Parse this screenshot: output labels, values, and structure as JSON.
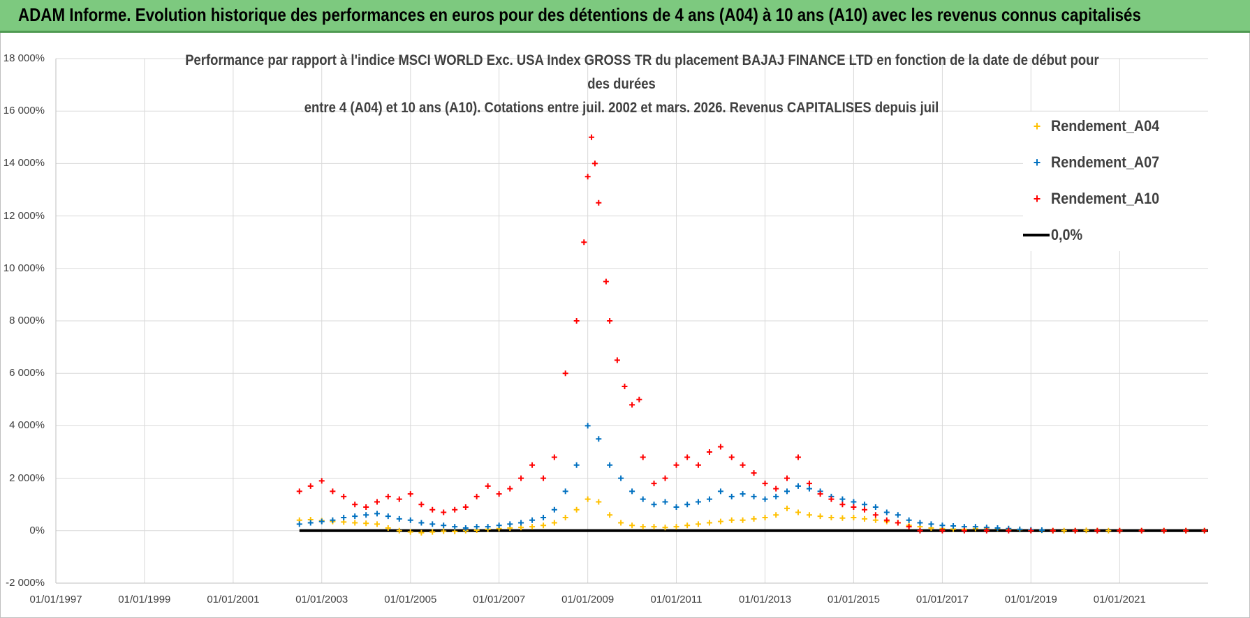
{
  "banner": {
    "title": "ADAM Informe. Evolution historique des performances en euros pour des détentions de 4 ans (A04) à 10 ans (A10) avec les revenus connus capitalisés"
  },
  "colors": {
    "banner_bg": "#7dc97f",
    "a04": "#ffc000",
    "a07": "#0070c0",
    "a10": "#ff0000",
    "zero": "#000000",
    "grid": "#d9d9d9"
  },
  "chart_data": {
    "type": "scatter",
    "title_lines": [
      "Performance par rapport à l'indice MSCI WORLD Exc. USA Index GROSS TR  du placement BAJAJ FINANCE LTD en fonction de la date de début pour",
      "des durées",
      "entre 4 (A04) et 10 ans (A10). Cotations entre juil. 2002 et mars. 2026. Revenus CAPITALISES depuis juil"
    ],
    "xlabel": "",
    "ylabel": "",
    "x_range": [
      "1997-01-01",
      "2022-12-31"
    ],
    "x_ticks": [
      "01/01/1997",
      "01/01/1999",
      "01/01/2001",
      "01/01/2003",
      "01/01/2005",
      "01/01/2007",
      "01/01/2009",
      "01/01/2011",
      "01/01/2013",
      "01/01/2015",
      "01/01/2017",
      "01/01/2019",
      "01/01/2021"
    ],
    "y_range": [
      -2000,
      18000
    ],
    "y_ticks": [
      -2000,
      0,
      2000,
      4000,
      6000,
      8000,
      10000,
      12000,
      14000,
      16000,
      18000
    ],
    "y_tick_labels": [
      "-2 000%",
      "0%",
      "2 000%",
      "4 000%",
      "6 000%",
      "8 000%",
      "10 000%",
      "12 000%",
      "14 000%",
      "16 000%",
      "18 000%"
    ],
    "grid": true,
    "legend_position": "top-right",
    "series": [
      {
        "name": "Rendement_A04",
        "marker": "+",
        "points": [
          [
            "2002-07-01",
            400
          ],
          [
            "2002-10-01",
            420
          ],
          [
            "2003-01-01",
            380
          ],
          [
            "2003-04-01",
            350
          ],
          [
            "2003-07-01",
            330
          ],
          [
            "2003-10-01",
            300
          ],
          [
            "2004-01-01",
            280
          ],
          [
            "2004-04-01",
            250
          ],
          [
            "2004-07-01",
            100
          ],
          [
            "2004-10-01",
            0
          ],
          [
            "2005-01-01",
            -50
          ],
          [
            "2005-04-01",
            -80
          ],
          [
            "2005-07-01",
            -50
          ],
          [
            "2005-10-01",
            -20
          ],
          [
            "2006-01-01",
            -30
          ],
          [
            "2006-04-01",
            0
          ],
          [
            "2006-07-01",
            20
          ],
          [
            "2006-10-01",
            50
          ],
          [
            "2007-01-01",
            80
          ],
          [
            "2007-04-01",
            100
          ],
          [
            "2007-07-01",
            120
          ],
          [
            "2007-10-01",
            150
          ],
          [
            "2008-01-01",
            200
          ],
          [
            "2008-04-01",
            300
          ],
          [
            "2008-07-01",
            500
          ],
          [
            "2008-10-01",
            800
          ],
          [
            "2009-01-01",
            1200
          ],
          [
            "2009-04-01",
            1100
          ],
          [
            "2009-07-01",
            600
          ],
          [
            "2009-10-01",
            300
          ],
          [
            "2010-01-01",
            200
          ],
          [
            "2010-04-01",
            150
          ],
          [
            "2010-07-01",
            150
          ],
          [
            "2010-10-01",
            120
          ],
          [
            "2011-01-01",
            150
          ],
          [
            "2011-04-01",
            200
          ],
          [
            "2011-07-01",
            250
          ],
          [
            "2011-10-01",
            300
          ],
          [
            "2012-01-01",
            350
          ],
          [
            "2012-04-01",
            400
          ],
          [
            "2012-07-01",
            400
          ],
          [
            "2012-10-01",
            450
          ],
          [
            "2013-01-01",
            500
          ],
          [
            "2013-04-01",
            600
          ],
          [
            "2013-07-01",
            850
          ],
          [
            "2013-10-01",
            700
          ],
          [
            "2014-01-01",
            600
          ],
          [
            "2014-04-01",
            550
          ],
          [
            "2014-07-01",
            500
          ],
          [
            "2014-10-01",
            480
          ],
          [
            "2015-01-01",
            500
          ],
          [
            "2015-04-01",
            450
          ],
          [
            "2015-07-01",
            400
          ],
          [
            "2015-10-01",
            350
          ],
          [
            "2016-01-01",
            300
          ],
          [
            "2016-04-01",
            200
          ],
          [
            "2016-07-01",
            150
          ],
          [
            "2016-10-01",
            100
          ],
          [
            "2017-01-01",
            80
          ],
          [
            "2017-04-01",
            60
          ],
          [
            "2017-07-01",
            50
          ],
          [
            "2017-10-01",
            80
          ],
          [
            "2018-01-01",
            100
          ],
          [
            "2018-04-01",
            80
          ],
          [
            "2018-07-01",
            60
          ],
          [
            "2018-10-01",
            40
          ],
          [
            "2019-01-01",
            20
          ],
          [
            "2019-04-01",
            10
          ],
          [
            "2019-07-01",
            0
          ],
          [
            "2019-10-01",
            0
          ],
          [
            "2020-01-01",
            0
          ],
          [
            "2020-04-01",
            10
          ],
          [
            "2020-07-01",
            5
          ],
          [
            "2020-10-01",
            0
          ],
          [
            "2021-01-01",
            0
          ],
          [
            "2021-07-01",
            0
          ],
          [
            "2022-01-01",
            0
          ],
          [
            "2022-07-01",
            0
          ],
          [
            "2022-12-01",
            0
          ]
        ]
      },
      {
        "name": "Rendement_A07",
        "marker": "+",
        "points": [
          [
            "2002-07-01",
            250
          ],
          [
            "2002-10-01",
            300
          ],
          [
            "2003-01-01",
            350
          ],
          [
            "2003-04-01",
            400
          ],
          [
            "2003-07-01",
            500
          ],
          [
            "2003-10-01",
            550
          ],
          [
            "2004-01-01",
            600
          ],
          [
            "2004-04-01",
            650
          ],
          [
            "2004-07-01",
            550
          ],
          [
            "2004-10-01",
            450
          ],
          [
            "2005-01-01",
            400
          ],
          [
            "2005-04-01",
            300
          ],
          [
            "2005-07-01",
            250
          ],
          [
            "2005-10-01",
            200
          ],
          [
            "2006-01-01",
            150
          ],
          [
            "2006-04-01",
            100
          ],
          [
            "2006-07-01",
            150
          ],
          [
            "2006-10-01",
            150
          ],
          [
            "2007-01-01",
            200
          ],
          [
            "2007-04-01",
            250
          ],
          [
            "2007-07-01",
            300
          ],
          [
            "2007-10-01",
            400
          ],
          [
            "2008-01-01",
            500
          ],
          [
            "2008-04-01",
            800
          ],
          [
            "2008-07-01",
            1500
          ],
          [
            "2008-10-01",
            2500
          ],
          [
            "2009-01-01",
            4000
          ],
          [
            "2009-04-01",
            3500
          ],
          [
            "2009-07-01",
            2500
          ],
          [
            "2009-10-01",
            2000
          ],
          [
            "2010-01-01",
            1500
          ],
          [
            "2010-04-01",
            1200
          ],
          [
            "2010-07-01",
            1000
          ],
          [
            "2010-10-01",
            1100
          ],
          [
            "2011-01-01",
            900
          ],
          [
            "2011-04-01",
            1000
          ],
          [
            "2011-07-01",
            1100
          ],
          [
            "2011-10-01",
            1200
          ],
          [
            "2012-01-01",
            1500
          ],
          [
            "2012-04-01",
            1300
          ],
          [
            "2012-07-01",
            1400
          ],
          [
            "2012-10-01",
            1300
          ],
          [
            "2013-01-01",
            1200
          ],
          [
            "2013-04-01",
            1300
          ],
          [
            "2013-07-01",
            1500
          ],
          [
            "2013-10-01",
            1700
          ],
          [
            "2014-01-01",
            1600
          ],
          [
            "2014-04-01",
            1500
          ],
          [
            "2014-07-01",
            1300
          ],
          [
            "2014-10-01",
            1200
          ],
          [
            "2015-01-01",
            1100
          ],
          [
            "2015-04-01",
            1000
          ],
          [
            "2015-07-01",
            900
          ],
          [
            "2015-10-01",
            700
          ],
          [
            "2016-01-01",
            600
          ],
          [
            "2016-04-01",
            400
          ],
          [
            "2016-07-01",
            300
          ],
          [
            "2016-10-01",
            250
          ],
          [
            "2017-01-01",
            200
          ],
          [
            "2017-04-01",
            180
          ],
          [
            "2017-07-01",
            150
          ],
          [
            "2017-10-01",
            150
          ],
          [
            "2018-01-01",
            120
          ],
          [
            "2018-04-01",
            100
          ],
          [
            "2018-07-01",
            80
          ],
          [
            "2018-10-01",
            50
          ],
          [
            "2019-01-01",
            30
          ],
          [
            "2019-04-01",
            20
          ]
        ]
      },
      {
        "name": "Rendement_A10",
        "marker": "+",
        "points": [
          [
            "2002-07-01",
            1500
          ],
          [
            "2002-10-01",
            1700
          ],
          [
            "2003-01-01",
            1900
          ],
          [
            "2003-04-01",
            1500
          ],
          [
            "2003-07-01",
            1300
          ],
          [
            "2003-10-01",
            1000
          ],
          [
            "2004-01-01",
            900
          ],
          [
            "2004-04-01",
            1100
          ],
          [
            "2004-07-01",
            1300
          ],
          [
            "2004-10-01",
            1200
          ],
          [
            "2005-01-01",
            1400
          ],
          [
            "2005-04-01",
            1000
          ],
          [
            "2005-07-01",
            800
          ],
          [
            "2005-10-01",
            700
          ],
          [
            "2006-01-01",
            800
          ],
          [
            "2006-04-01",
            900
          ],
          [
            "2006-07-01",
            1300
          ],
          [
            "2006-10-01",
            1700
          ],
          [
            "2007-01-01",
            1400
          ],
          [
            "2007-04-01",
            1600
          ],
          [
            "2007-07-01",
            2000
          ],
          [
            "2007-10-01",
            2500
          ],
          [
            "2008-01-01",
            2000
          ],
          [
            "2008-04-01",
            2800
          ],
          [
            "2008-07-01",
            6000
          ],
          [
            "2008-10-01",
            8000
          ],
          [
            "2008-12-01",
            11000
          ],
          [
            "2009-01-01",
            13500
          ],
          [
            "2009-02-01",
            15000
          ],
          [
            "2009-03-01",
            14000
          ],
          [
            "2009-04-01",
            12500
          ],
          [
            "2009-06-01",
            9500
          ],
          [
            "2009-07-01",
            8000
          ],
          [
            "2009-09-01",
            6500
          ],
          [
            "2009-11-01",
            5500
          ],
          [
            "2010-01-01",
            4800
          ],
          [
            "2010-03-01",
            5000
          ],
          [
            "2010-04-01",
            2800
          ],
          [
            "2010-07-01",
            1800
          ],
          [
            "2010-10-01",
            2000
          ],
          [
            "2011-01-01",
            2500
          ],
          [
            "2011-04-01",
            2800
          ],
          [
            "2011-07-01",
            2500
          ],
          [
            "2011-10-01",
            3000
          ],
          [
            "2012-01-01",
            3200
          ],
          [
            "2012-04-01",
            2800
          ],
          [
            "2012-07-01",
            2500
          ],
          [
            "2012-10-01",
            2200
          ],
          [
            "2013-01-01",
            1800
          ],
          [
            "2013-04-01",
            1600
          ],
          [
            "2013-07-01",
            2000
          ],
          [
            "2013-10-01",
            2800
          ],
          [
            "2014-01-01",
            1800
          ],
          [
            "2014-04-01",
            1400
          ],
          [
            "2014-07-01",
            1200
          ],
          [
            "2014-10-01",
            1000
          ],
          [
            "2015-01-01",
            900
          ],
          [
            "2015-04-01",
            800
          ],
          [
            "2015-07-01",
            600
          ],
          [
            "2015-10-01",
            400
          ],
          [
            "2016-01-01",
            300
          ],
          [
            "2016-04-01",
            150
          ],
          [
            "2016-07-01",
            0
          ],
          [
            "2017-01-01",
            0
          ],
          [
            "2017-07-01",
            0
          ],
          [
            "2018-01-01",
            0
          ],
          [
            "2018-07-01",
            0
          ],
          [
            "2019-01-01",
            0
          ],
          [
            "2019-07-01",
            0
          ],
          [
            "2020-01-01",
            0
          ],
          [
            "2020-07-01",
            0
          ],
          [
            "2021-01-01",
            0
          ],
          [
            "2021-07-01",
            0
          ],
          [
            "2022-01-01",
            0
          ],
          [
            "2022-07-01",
            0
          ],
          [
            "2022-12-01",
            0
          ]
        ]
      },
      {
        "name": "0,0%",
        "type": "line",
        "points": [
          [
            "2002-07-01",
            0
          ],
          [
            "2022-12-31",
            0
          ]
        ]
      }
    ]
  }
}
